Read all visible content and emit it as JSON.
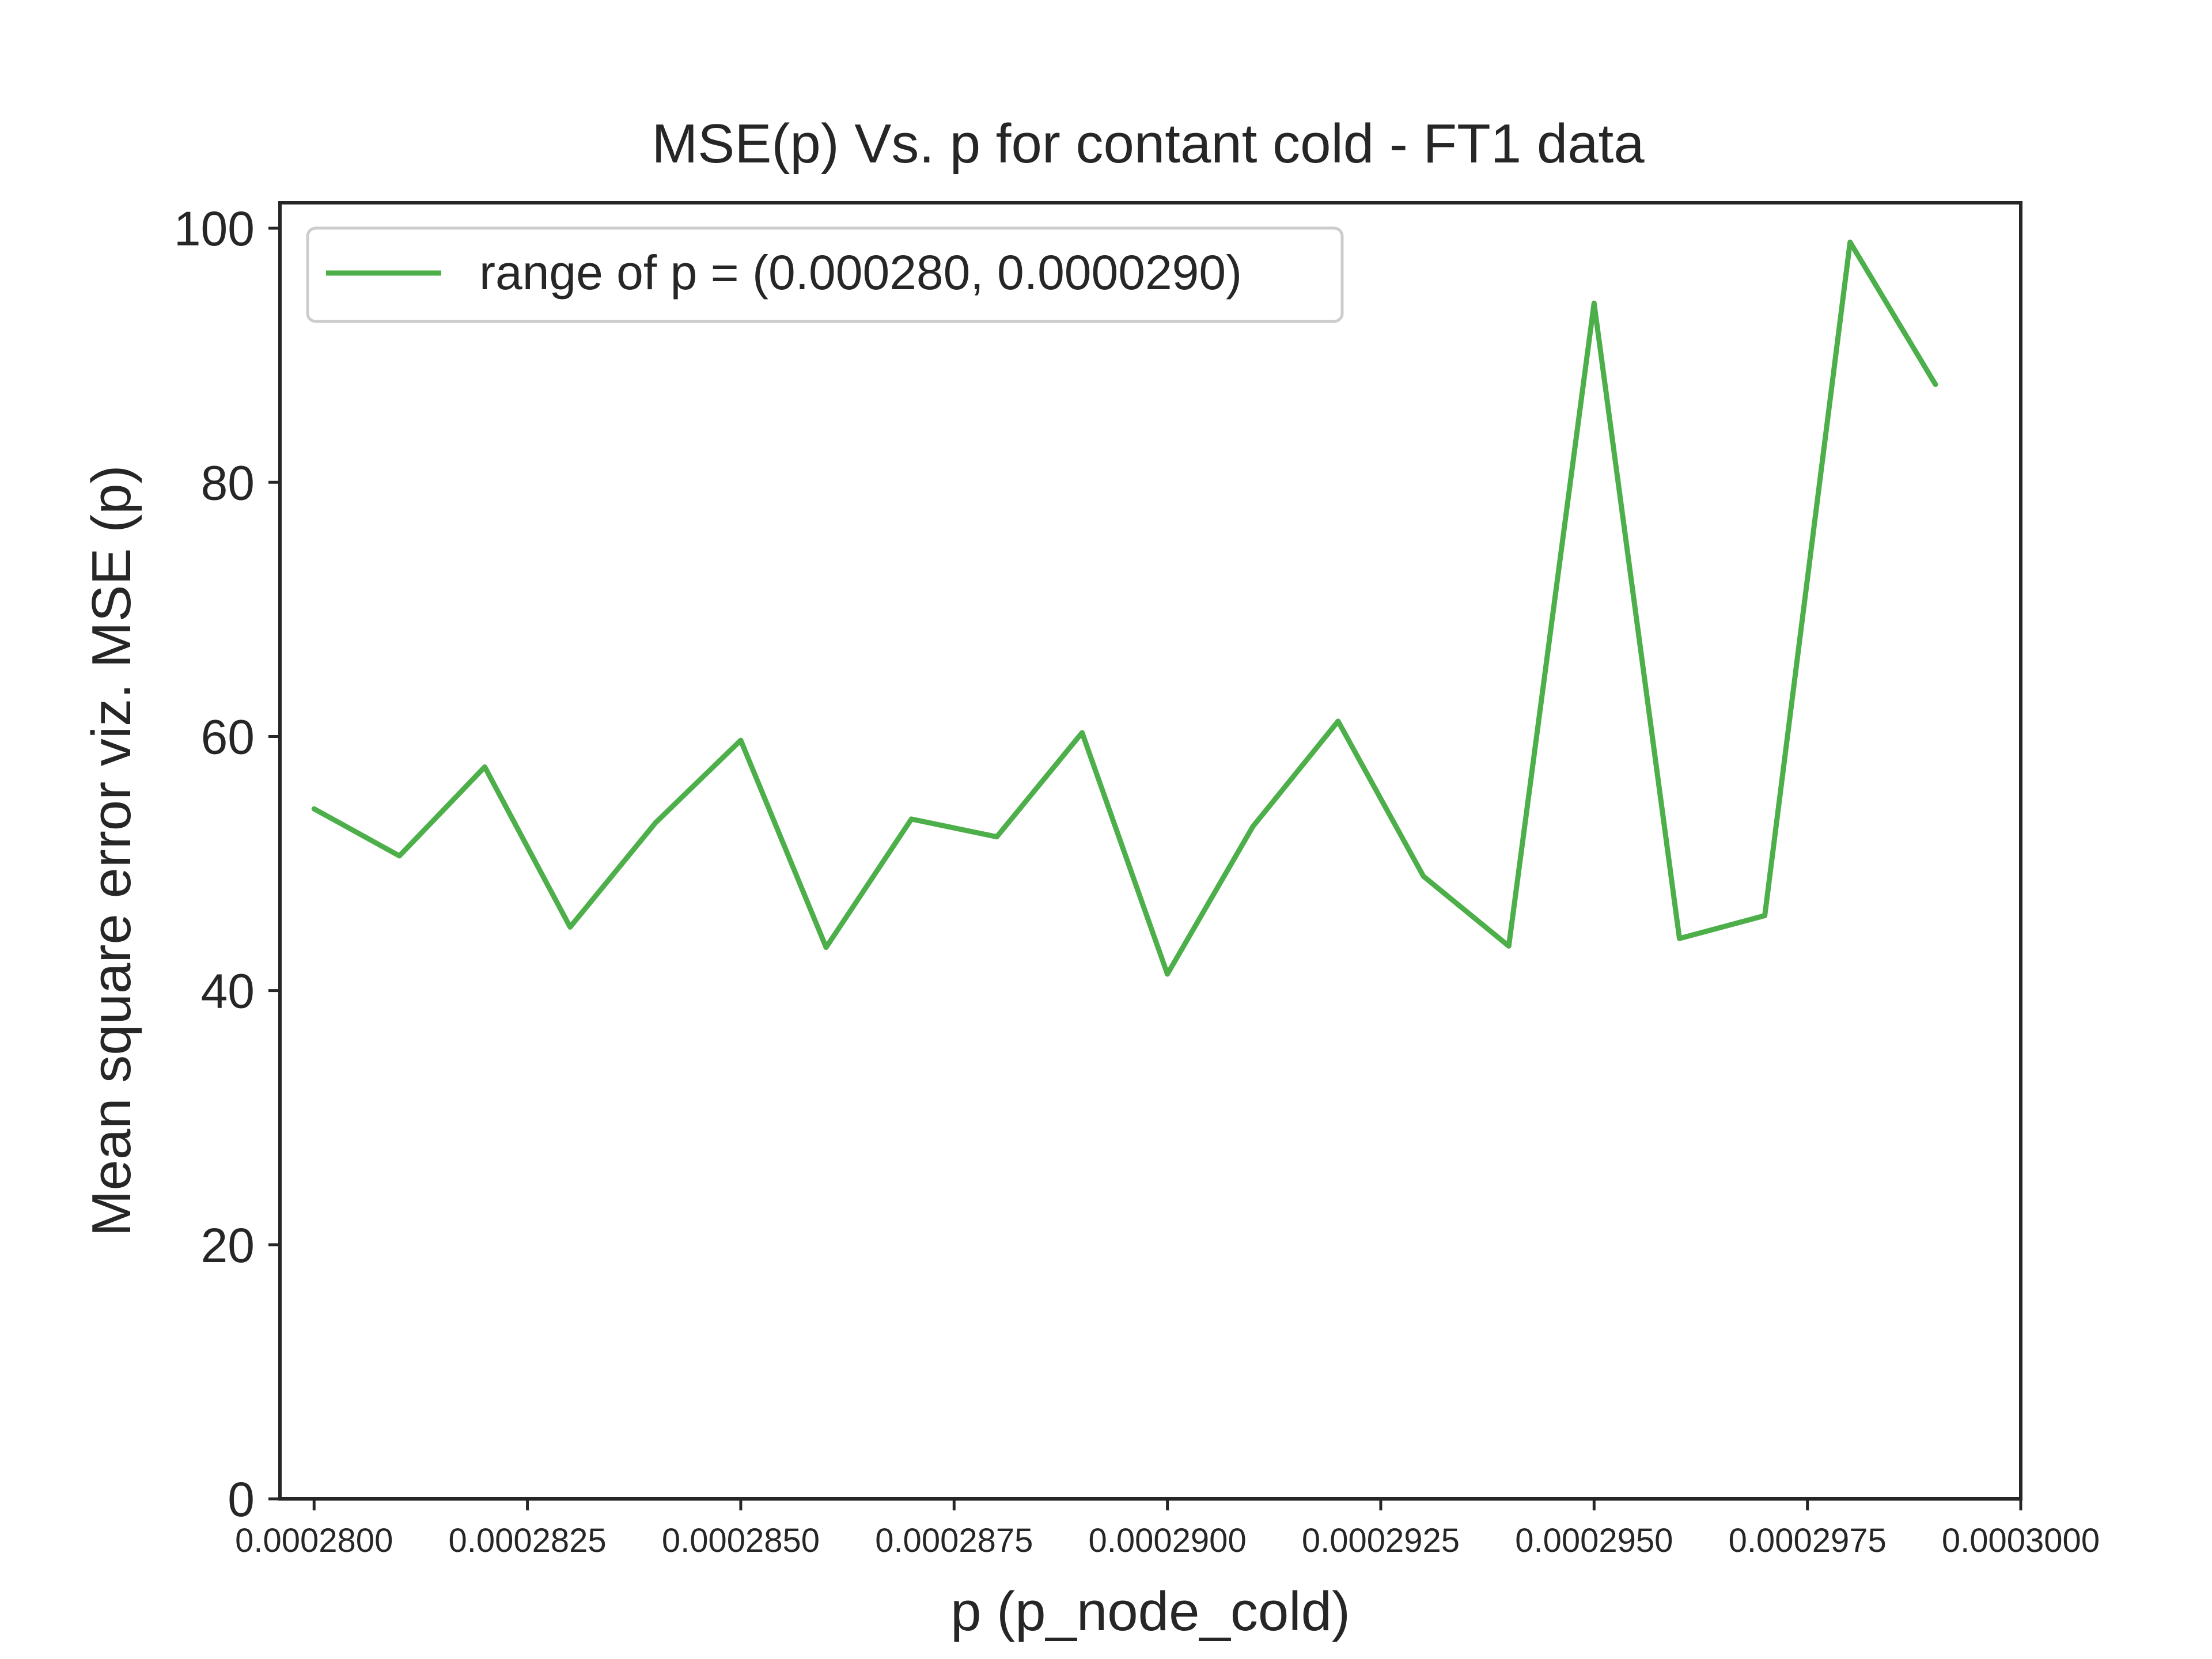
{
  "chart_data": {
    "type": "line",
    "title": "MSE(p) Vs. p for contant cold - FT1 data",
    "xlabel": "p (p_node_cold)",
    "ylabel": "Mean square error viz. MSE (p)",
    "xlim": [
      0.0002796,
      0.0003
    ],
    "ylim": [
      0,
      102
    ],
    "x_ticks": [
      0.00028,
      0.0002825,
      0.000285,
      0.0002875,
      0.00029,
      0.0002925,
      0.000295,
      0.0002975,
      0.0003
    ],
    "x_tick_labels": [
      "0.0002800",
      "0.0002825",
      "0.0002850",
      "0.0002875",
      "0.0002900",
      "0.0002925",
      "0.0002950",
      "0.0002975",
      "0.0003000"
    ],
    "y_ticks": [
      0,
      20,
      40,
      60,
      80,
      100
    ],
    "y_tick_labels": [
      "0",
      "20",
      "40",
      "60",
      "80",
      "100"
    ],
    "grid": false,
    "legend_position": "top-left",
    "series": [
      {
        "name": "range of p = (0.000280, 0.0000290)",
        "color": "#4daf4a",
        "x": [
          0.00028,
          0.000281,
          0.000282,
          0.000283,
          0.000284,
          0.000285,
          0.000286,
          0.000287,
          0.000288,
          0.000289,
          0.00029,
          0.000291,
          0.000292,
          0.000293,
          0.000294,
          0.000295,
          0.000296,
          0.000297,
          0.000298,
          0.000299
        ],
        "y": [
          54.3,
          50.6,
          57.6,
          45.0,
          53.2,
          59.7,
          43.4,
          53.5,
          52.1,
          60.3,
          41.3,
          52.9,
          61.2,
          49.0,
          43.5,
          94.1,
          44.1,
          45.9,
          98.9,
          87.7
        ]
      }
    ]
  }
}
